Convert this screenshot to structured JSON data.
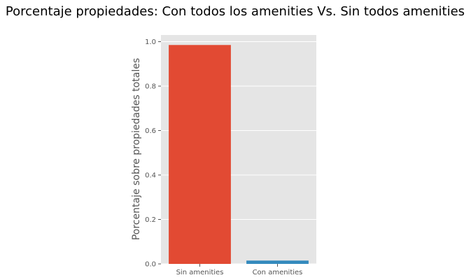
{
  "chart_data": {
    "type": "bar",
    "title": "Porcentaje propiedades: Con todos los amenities Vs. Sin todos amenities",
    "xlabel": "",
    "ylabel": "Porcentaje sobre propiedades totales",
    "categories": [
      "Sin amenities",
      "Con amenities"
    ],
    "values": [
      0.985,
      0.015
    ],
    "colors": [
      "#E24A33",
      "#348ABD"
    ],
    "ylim": [
      0,
      1.03
    ],
    "yticks": [
      0.0,
      0.2,
      0.4,
      0.6,
      0.8,
      1.0
    ],
    "ytick_labels": [
      "0.0",
      "0.2",
      "0.4",
      "0.6",
      "0.8",
      "1.0"
    ],
    "grid": true,
    "background_color": "#E5E5E5",
    "grid_color": "#FFFFFF"
  }
}
